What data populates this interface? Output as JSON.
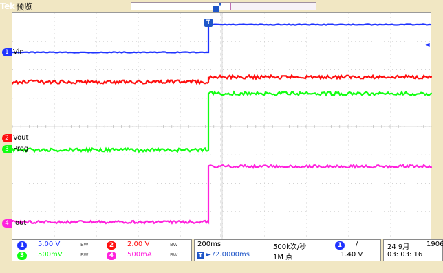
{
  "header": {
    "brand": "Tek",
    "mode": "预览"
  },
  "colors": {
    "ch1": "#1f33ff",
    "ch2": "#ff1010",
    "ch3": "#12ff12",
    "ch4": "#ff22dd",
    "grid": "#c8c8c8"
  },
  "trigger": {
    "marker": "T",
    "level_marker": "◄"
  },
  "channels": [
    {
      "num": "1",
      "name": "Vin",
      "scale": "5.00 V",
      "bw": "BW"
    },
    {
      "num": "2",
      "name": "Vout",
      "scale": "2.00 V",
      "bw": "BW"
    },
    {
      "num": "3",
      "name": "Prog",
      "scale": "500mV",
      "bw": "BW"
    },
    {
      "num": "4",
      "name": "Iout",
      "scale": "500mA",
      "bw": "BW"
    }
  ],
  "timebase": {
    "scale": "200ms",
    "position": "►72.0000ms"
  },
  "acquisition": {
    "rate": "500k次/秒",
    "points": "1M 点"
  },
  "trigger_readout": {
    "source": "1",
    "slope": "/",
    "level": "1.40 V"
  },
  "datetime": {
    "date": "24 9月",
    "year": "1906",
    "time": "03: 03: 16"
  }
}
